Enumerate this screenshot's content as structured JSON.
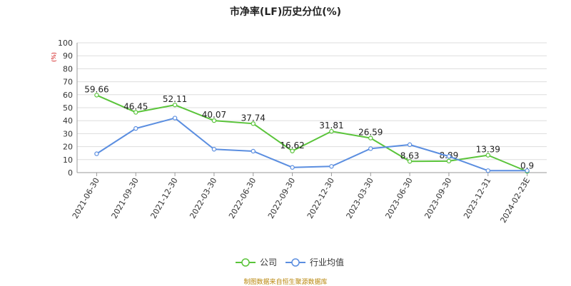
{
  "chart_data": {
    "type": "line",
    "title": "市净率(LF)历史分位(%)",
    "yunit": "(%)",
    "ylim": [
      0,
      100
    ],
    "yticks": [
      0,
      10,
      20,
      30,
      40,
      50,
      60,
      70,
      80,
      90,
      100
    ],
    "grid": true,
    "categories": [
      "2021-06-30",
      "2021-09-30",
      "2021-12-30",
      "2022-03-30",
      "2022-06-30",
      "2022-09-30",
      "2022-12-30",
      "2023-03-30",
      "2023-06-30",
      "2023-09-30",
      "2023-12-31",
      "2024-02-23E"
    ],
    "series": [
      {
        "name": "公司",
        "color": "#5ac43a",
        "values": [
          59.66,
          46.45,
          52.11,
          40.07,
          37.74,
          16.62,
          31.81,
          26.59,
          8.63,
          8.89,
          13.39,
          0.9
        ],
        "labels": [
          "59.66",
          "46.45",
          "52.11",
          "40.07",
          "37.74",
          "16.62",
          "31.81",
          "26.59",
          "8.63",
          "8.89",
          "13.39",
          "0.9"
        ]
      },
      {
        "name": "行业均值",
        "color": "#5b8ee0",
        "values": [
          14.5,
          34.0,
          42.0,
          18.0,
          16.5,
          4.0,
          4.8,
          18.5,
          21.5,
          12.5,
          1.5,
          1.5
        ]
      }
    ],
    "legend_position": "bottom"
  },
  "source_note": "制图数据来自恒生聚源数据库"
}
